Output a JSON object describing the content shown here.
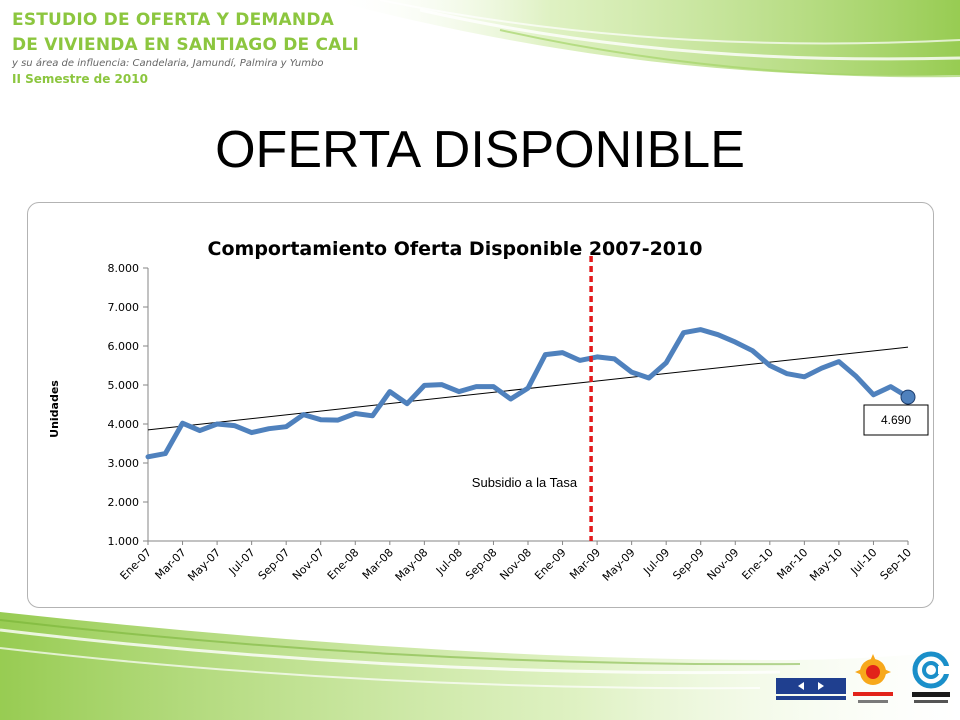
{
  "header": {
    "line1": "ESTUDIO DE OFERTA Y DEMANDA",
    "line2": "DE VIVIENDA EN SANTIAGO DE CALI",
    "line3": "y su área de influencia: Candelaria, Jamundí, Palmira y Yumbo",
    "line4": "II Semestre de 2010"
  },
  "slide": {
    "title": "OFERTA DISPONIBLE"
  },
  "colors": {
    "accent_green": "#8cc63f",
    "series_blue": "#4f81bd",
    "marker_line_red": "#e31a1c",
    "trend_black": "#000000"
  },
  "chart_data": {
    "type": "line",
    "title": "Comportamiento Oferta Disponible 2007-2010",
    "xlabel": "",
    "ylabel": "Unidades",
    "ylim": [
      1000,
      8000
    ],
    "yticks": [
      "1.000",
      "2.000",
      "3.000",
      "4.000",
      "5.000",
      "6.000",
      "7.000",
      "8.000"
    ],
    "x_tick_labels": [
      "Ene-07",
      "Mar-07",
      "May-07",
      "Jul-07",
      "Sep-07",
      "Nov-07",
      "Ene-08",
      "Mar-08",
      "May-08",
      "Jul-08",
      "Sep-08",
      "Nov-08",
      "Ene-09",
      "Mar-09",
      "May-09",
      "Jul-09",
      "Sep-09",
      "Nov-09",
      "Ene-10",
      "Mar-10",
      "May-10",
      "Jul-10",
      "Sep-10"
    ],
    "categories": [
      "Ene-07",
      "Feb-07",
      "Mar-07",
      "Abr-07",
      "May-07",
      "Jun-07",
      "Jul-07",
      "Ago-07",
      "Sep-07",
      "Oct-07",
      "Nov-07",
      "Dic-07",
      "Ene-08",
      "Feb-08",
      "Mar-08",
      "Abr-08",
      "May-08",
      "Jun-08",
      "Jul-08",
      "Ago-08",
      "Sep-08",
      "Oct-08",
      "Nov-08",
      "Dic-08",
      "Ene-09",
      "Feb-09",
      "Mar-09",
      "Abr-09",
      "May-09",
      "Jun-09",
      "Jul-09",
      "Ago-09",
      "Sep-09",
      "Oct-09",
      "Nov-09",
      "Dic-09",
      "Ene-10",
      "Feb-10",
      "Mar-10",
      "Abr-10",
      "May-10",
      "Jun-10",
      "Jul-10",
      "Ago-10",
      "Sep-10"
    ],
    "series": [
      {
        "values": [
          3160,
          3240,
          4020,
          3830,
          4000,
          3960,
          3780,
          3880,
          3930,
          4240,
          4110,
          4100,
          4270,
          4210,
          4830,
          4520,
          4990,
          5010,
          4830,
          4960,
          4960,
          4640,
          4920,
          5780,
          5830,
          5630,
          5720,
          5670,
          5330,
          5180,
          5570,
          6340,
          6420,
          6290,
          6100,
          5880,
          5500,
          5290,
          5210,
          5430,
          5600,
          5220,
          4750,
          4960,
          4690
        ]
      }
    ],
    "trendline": {
      "type": "linear",
      "start": 3850,
      "end": 5970
    },
    "annotations": {
      "vline_category": "Mar-09",
      "vline_label": "Subsidio a la Tasa",
      "last_value_label": "4.690"
    },
    "grid": false,
    "legend": "none"
  }
}
